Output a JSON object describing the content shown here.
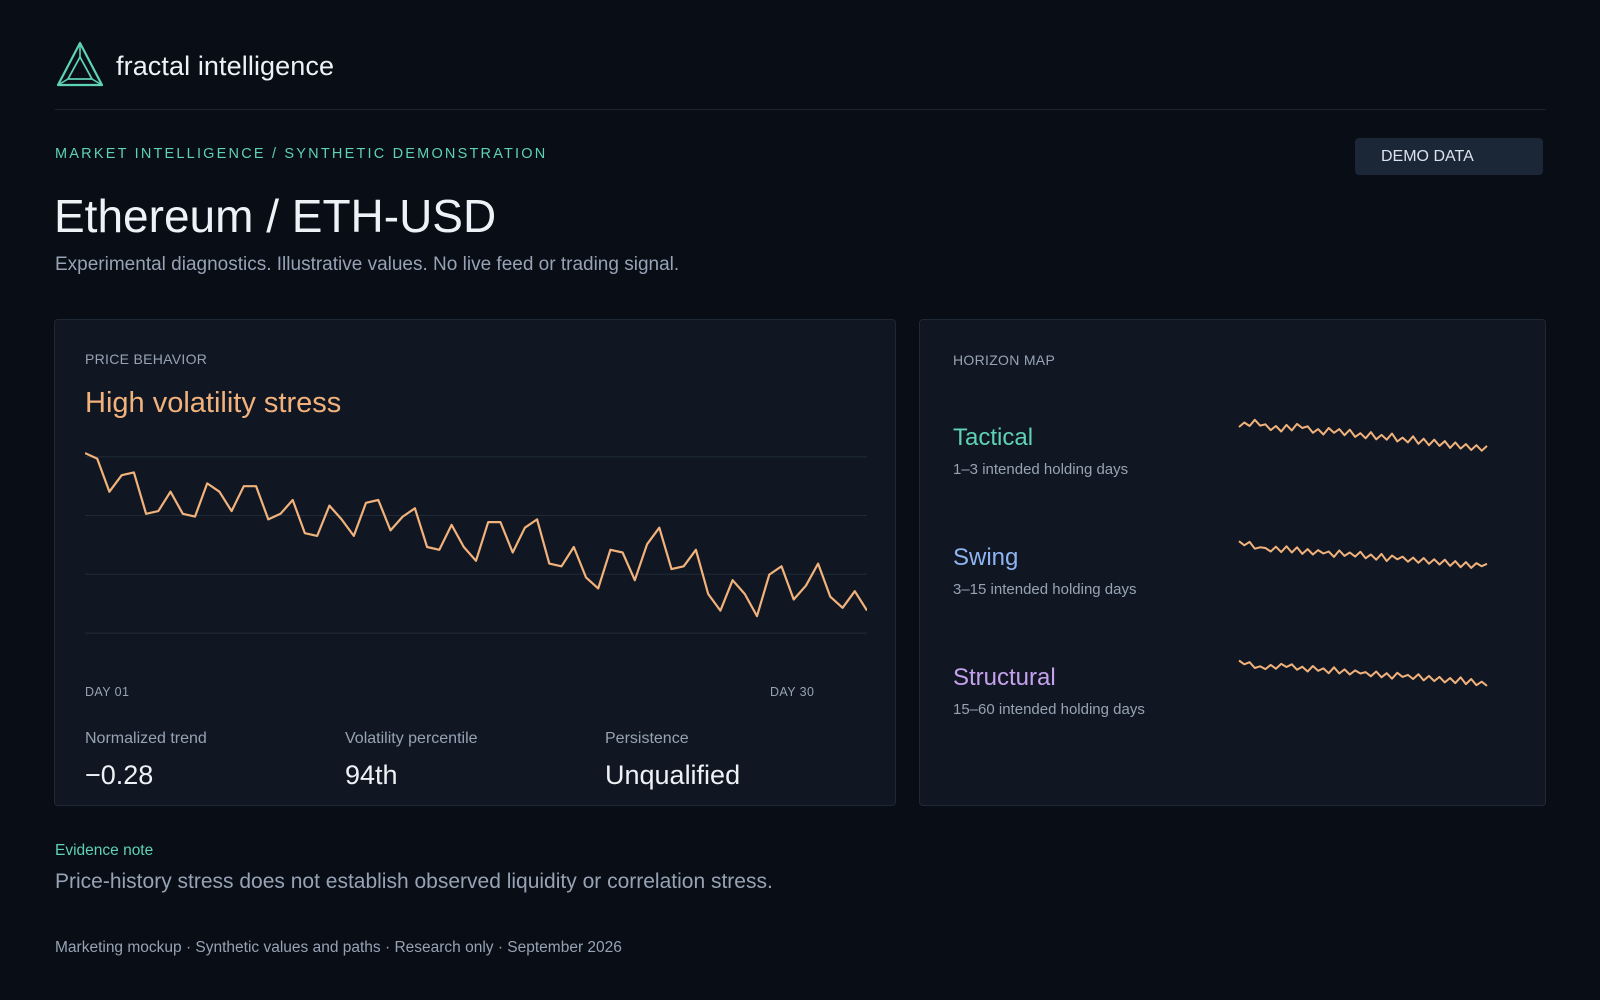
{
  "brand": {
    "name": "fractal intelligence",
    "logo_icon": "triangle-logo-icon",
    "accent": "#5fd1b5"
  },
  "header": {
    "breadcrumb": "MARKET INTELLIGENCE / SYNTHETIC DEMONSTRATION",
    "badge": "DEMO DATA",
    "title": "Ethereum / ETH-USD",
    "subtitle": "Experimental diagnostics. Illustrative values. No live feed or trading signal."
  },
  "price_card": {
    "section_label": "PRICE BEHAVIOR",
    "state": "High volatility stress",
    "state_color": "#f2b27c",
    "x_start": "DAY 01",
    "x_end": "DAY 30",
    "stats": [
      {
        "label": "Normalized trend",
        "value": "−0.28"
      },
      {
        "label": "Volatility percentile",
        "value": "94th"
      },
      {
        "label": "Persistence",
        "value": "Unqualified"
      }
    ]
  },
  "horizon_card": {
    "section_label": "HORIZON MAP",
    "horizons": [
      {
        "name": "Tactical",
        "desc": "1–3 intended holding days",
        "color": "#5fd1b5"
      },
      {
        "name": "Swing",
        "desc": "3–15 intended holding days",
        "color": "#8fb4f2"
      },
      {
        "name": "Structural",
        "desc": "15–60 intended holding days",
        "color": "#c5a2ee"
      }
    ]
  },
  "evidence": {
    "label": "Evidence note",
    "text": "Price-history stress does not establish observed liquidity or correlation stress."
  },
  "footer": "Marketing mockup · Synthetic values and paths · Research only · September 2026",
  "chart_data": [
    {
      "type": "line",
      "title": "",
      "series_color": "#f2b27c",
      "values": [
        100,
        99,
        93,
        96,
        96.5,
        89,
        89.5,
        93,
        89,
        88.5,
        94.5,
        93,
        89.5,
        94,
        94,
        88,
        89,
        91.5,
        85.5,
        85,
        90.5,
        88,
        85,
        91,
        91.5,
        86,
        88.5,
        90,
        83,
        82.5,
        87,
        83,
        80.5,
        87.5,
        87.5,
        82,
        86.5,
        88,
        80,
        79.5,
        83,
        77.5,
        75.5,
        82.5,
        82,
        77,
        83.5,
        86.5,
        79,
        79.5,
        82.5,
        74.5,
        71.5,
        77,
        74.5,
        70.5,
        78,
        79.5,
        73.5,
        76,
        80,
        74,
        72,
        75,
        71.5
      ],
      "ylim": [
        64,
        102
      ],
      "grid": true
    },
    {
      "type": "line",
      "title": "",
      "series_color": "#f2b27c",
      "values": [
        10.5,
        11.8,
        10.8,
        12.6,
        10.9,
        11.3,
        9.6,
        10.8,
        9.2,
        11.1,
        9.5,
        11.4,
        10.2,
        10.7,
        8.8,
        9.9,
        8.3,
        10.2,
        8.8,
        9.9,
        8.1,
        9.7,
        7.6,
        8.7,
        7.2,
        9.0,
        6.9,
        8.2,
        6.8,
        8.6,
        6.3,
        7.4,
        6.0,
        7.8,
        5.6,
        7.1,
        5.2,
        6.8,
        5.0,
        6.4,
        4.4,
        6.0,
        4.2,
        5.5,
        3.8,
        5.2,
        3.6,
        5.0
      ],
      "ylim": [
        0,
        14
      ]
    },
    {
      "type": "line",
      "title": "",
      "series_color": "#f2b27c",
      "values": [
        12.2,
        11.0,
        12.0,
        10.0,
        10.4,
        10.2,
        9.2,
        10.6,
        9.0,
        10.7,
        8.9,
        10.4,
        8.5,
        9.9,
        8.3,
        9.6,
        8.6,
        9.2,
        7.6,
        9.5,
        7.9,
        8.9,
        7.7,
        9.1,
        7.2,
        8.3,
        6.8,
        8.5,
        6.4,
        8.0,
        6.9,
        7.7,
        6.2,
        7.4,
        5.9,
        7.3,
        5.6,
        6.9,
        5.4,
        6.8,
        5.0,
        6.4,
        4.6,
        6.1,
        4.4,
        5.8,
        4.9,
        5.6
      ],
      "ylim": [
        0,
        14
      ]
    },
    {
      "type": "line",
      "title": "",
      "series_color": "#f2b27c",
      "values": [
        12.4,
        11.3,
        11.9,
        10.2,
        10.7,
        9.9,
        11.1,
        10.0,
        11.4,
        10.5,
        11.3,
        9.7,
        10.6,
        9.2,
        10.8,
        9.4,
        10.1,
        8.7,
        10.4,
        8.6,
        9.8,
        8.3,
        9.5,
        8.6,
        9.0,
        7.8,
        9.2,
        7.5,
        8.7,
        7.1,
        8.8,
        7.6,
        8.2,
        7.0,
        8.4,
        6.6,
        7.9,
        6.4,
        7.6,
        6.0,
        7.3,
        5.8,
        7.5,
        5.5,
        7.0,
        5.2,
        6.2,
        5.0
      ],
      "ylim": [
        0,
        14
      ]
    }
  ]
}
